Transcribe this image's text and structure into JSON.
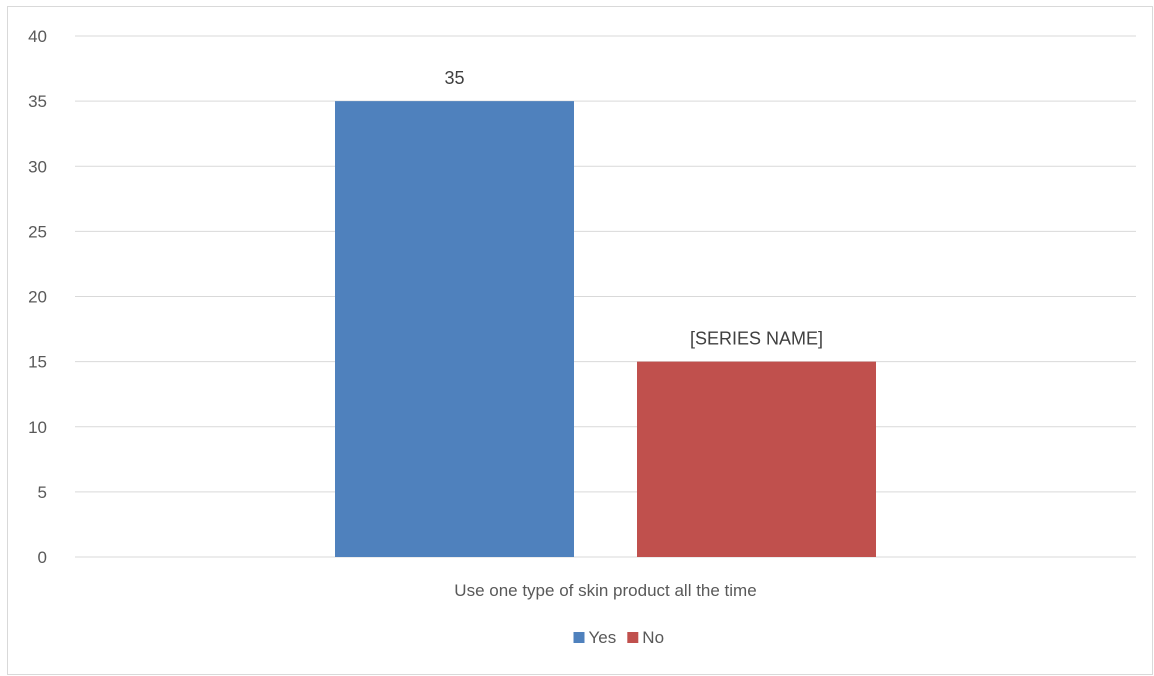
{
  "chart_data": {
    "type": "bar",
    "categories": [
      "Use one type of skin product all the time"
    ],
    "series": [
      {
        "name": "Yes",
        "values": [
          35
        ],
        "color": "#4F81BD",
        "data_label": "35"
      },
      {
        "name": "No",
        "values": [
          15
        ],
        "color": "#C0504D",
        "data_label": "[SERIES NAME]"
      }
    ],
    "ylim": [
      0,
      40
    ],
    "yticks": [
      0,
      5,
      10,
      15,
      20,
      25,
      30,
      35,
      40
    ],
    "grid": true,
    "legend_position": "bottom",
    "title": "",
    "xlabel": "",
    "ylabel": ""
  }
}
